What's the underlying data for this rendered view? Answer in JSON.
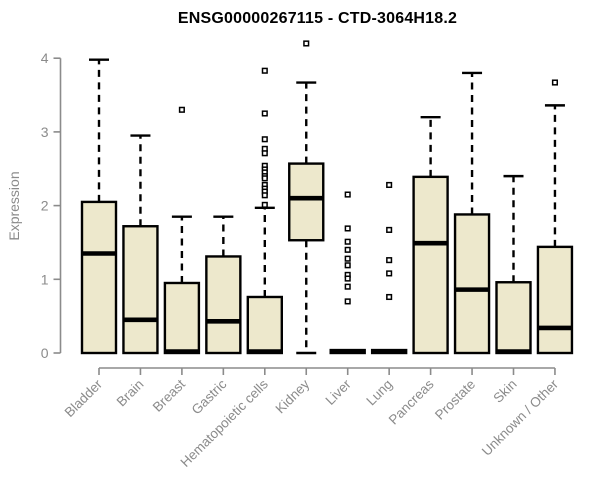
{
  "chart_data": {
    "type": "boxplot",
    "title": "ENSG00000267115 - CTD-3064H18.2",
    "ylabel": "Expression",
    "xlabel": "",
    "ylim": [
      0,
      4.3
    ],
    "yticks": [
      0,
      1,
      2,
      3,
      4
    ],
    "grid": false,
    "legend": "none",
    "categories": [
      "Bladder",
      "Brain",
      "Breast",
      "Gastric",
      "Hematopoietic cells",
      "Kidney",
      "Liver",
      "Lung",
      "Pancreas",
      "Prostate",
      "Skin",
      "Unknown / Other"
    ],
    "series": [
      {
        "name": "Bladder",
        "whisker_low": 0,
        "q1": 0,
        "median": 1.35,
        "q3": 2.05,
        "whisker_high": 3.98,
        "outliers": []
      },
      {
        "name": "Brain",
        "whisker_low": 0,
        "q1": 0,
        "median": 0.45,
        "q3": 1.72,
        "whisker_high": 2.95,
        "outliers": []
      },
      {
        "name": "Breast",
        "whisker_low": 0,
        "q1": 0,
        "median": 0.02,
        "q3": 0.95,
        "whisker_high": 1.85,
        "outliers": [
          3.3
        ]
      },
      {
        "name": "Gastric",
        "whisker_low": 0,
        "q1": 0,
        "median": 0.43,
        "q3": 1.31,
        "whisker_high": 1.85,
        "outliers": []
      },
      {
        "name": "Hematopoietic cells",
        "whisker_low": 0,
        "q1": 0,
        "median": 0.02,
        "q3": 0.76,
        "whisker_high": 1.97,
        "outliers": [
          3.83,
          3.25,
          2.9,
          2.77,
          2.71,
          2.54,
          2.49,
          2.45,
          2.4,
          2.37,
          2.28,
          2.23,
          2.19,
          2.14,
          2.01
        ]
      },
      {
        "name": "Kidney",
        "whisker_low": 0,
        "q1": 1.53,
        "median": 2.1,
        "q3": 2.57,
        "whisker_high": 3.67,
        "outliers": [
          4.2
        ]
      },
      {
        "name": "Liver",
        "whisker_low": 0,
        "q1": 0,
        "median": 0.02,
        "q3": 0.04,
        "whisker_high": 0.04,
        "outliers": [
          2.15,
          1.69,
          1.51,
          1.4,
          1.28,
          1.19,
          1.06,
          1.01,
          0.9,
          0.7
        ]
      },
      {
        "name": "Lung",
        "whisker_low": 0,
        "q1": 0,
        "median": 0.02,
        "q3": 0.04,
        "whisker_high": 0.04,
        "outliers": [
          2.28,
          1.67,
          1.26,
          1.08,
          0.76
        ]
      },
      {
        "name": "Pancreas",
        "whisker_low": 0,
        "q1": 0,
        "median": 1.49,
        "q3": 2.39,
        "whisker_high": 3.2,
        "outliers": []
      },
      {
        "name": "Prostate",
        "whisker_low": 0,
        "q1": 0,
        "median": 0.86,
        "q3": 1.88,
        "whisker_high": 3.8,
        "outliers": []
      },
      {
        "name": "Skin",
        "whisker_low": 0,
        "q1": 0,
        "median": 0.02,
        "q3": 0.96,
        "whisker_high": 2.4,
        "outliers": []
      },
      {
        "name": "Unknown / Other",
        "whisker_low": 0,
        "q1": 0,
        "median": 0.34,
        "q3": 1.44,
        "whisker_high": 3.36,
        "outliers": [
          3.67
        ]
      }
    ],
    "colors": {
      "box_fill": "#EDE8CC",
      "box_stroke": "#000000",
      "median": "#000000",
      "whisker": "#000000",
      "outlier_stroke": "#000000",
      "axis": "#8B8B8B",
      "tick_label": "#8B8B8B",
      "title": "#000000"
    }
  }
}
